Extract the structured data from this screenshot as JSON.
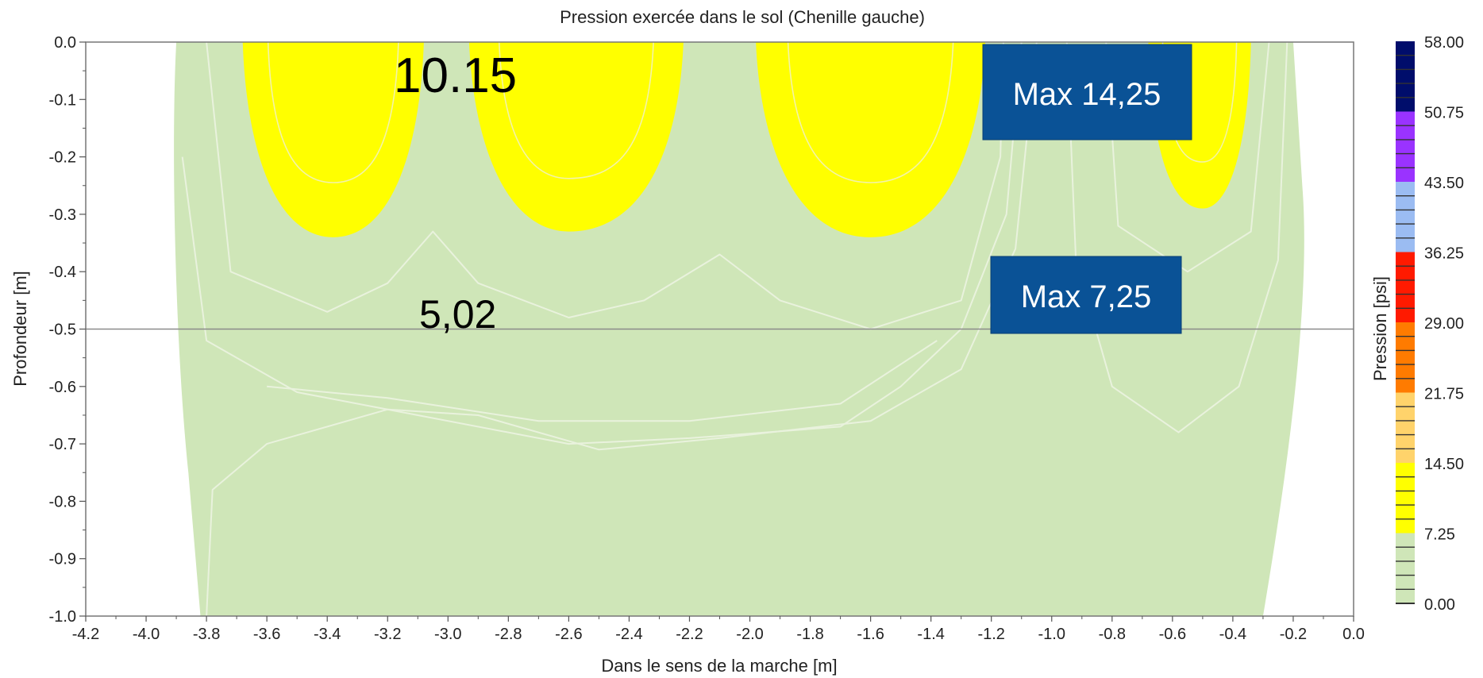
{
  "chart_data": {
    "type": "heatmap",
    "title": "Pression exercée dans le sol (Chenille gauche)",
    "xlabel": "Dans le sens de la marche [m]",
    "ylabel": "Profondeur [m]",
    "xlim": [
      -4.2,
      0.0
    ],
    "ylim": [
      -1.0,
      0.0
    ],
    "x_ticks": [
      "-4.2",
      "-4.0",
      "-3.8",
      "-3.6",
      "-3.4",
      "-3.2",
      "-3.0",
      "-2.8",
      "-2.6",
      "-2.4",
      "-2.2",
      "-2.0",
      "-1.8",
      "-1.6",
      "-1.4",
      "-1.2",
      "-1.0",
      "-0.8",
      "-0.6",
      "-0.4",
      "-0.2",
      "0.0"
    ],
    "y_ticks": [
      "0.0",
      "-0.1",
      "-0.2",
      "-0.3",
      "-0.4",
      "-0.5",
      "-0.6",
      "-0.7",
      "-0.8",
      "-0.9",
      "-1.0"
    ],
    "reference_line_y": -0.5,
    "colorbar": {
      "label": "Pression [psi]",
      "ticks": [
        "58.00",
        "50.75",
        "43.50",
        "36.25",
        "29.00",
        "21.75",
        "14.50",
        "7.25",
        "0.00"
      ],
      "bands": [
        {
          "from": 0.0,
          "to": 7.25,
          "color": "#cfe6b8"
        },
        {
          "from": 7.25,
          "to": 14.5,
          "color": "#ffff00"
        },
        {
          "from": 14.5,
          "to": 21.75,
          "color": "#ffd36b"
        },
        {
          "from": 21.75,
          "to": 29.0,
          "color": "#ff7b00"
        },
        {
          "from": 29.0,
          "to": 36.25,
          "color": "#ff1a00"
        },
        {
          "from": 36.25,
          "to": 43.5,
          "color": "#9bbcf2"
        },
        {
          "from": 43.5,
          "to": 50.75,
          "color": "#9a33ff"
        },
        {
          "from": 50.75,
          "to": 58.0,
          "color": "#000d6b"
        }
      ]
    },
    "high_pressure_regions": [
      {
        "x_from": -3.68,
        "x_to": -3.08,
        "x_peak": -3.38,
        "y_bottom": -0.34
      },
      {
        "x_from": -2.93,
        "x_to": -2.22,
        "x_peak": -2.6,
        "y_bottom": -0.33
      },
      {
        "x_from": -1.98,
        "x_to": -1.22,
        "x_peak": -1.6,
        "y_bottom": -0.34
      },
      {
        "x_from": -0.68,
        "x_to": -0.34,
        "x_peak": -0.5,
        "y_bottom": -0.29
      }
    ],
    "annotations": {
      "label_top": "10.15",
      "label_mid": "5,02",
      "box_top": "Max 14,25",
      "box_mid": "Max 7,25"
    }
  },
  "colors": {
    "soil": "#cfe6b8",
    "yellow": "#ffff00",
    "box": "#0a5296",
    "contour": "#e9f2dd"
  }
}
